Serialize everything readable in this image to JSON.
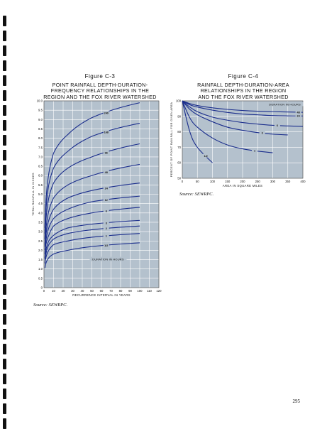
{
  "left": {
    "figure_number": "Figure C-3",
    "title_lines": [
      "POINT RAINFALL DEPTH-DURATION-",
      "FREQUENCY RELATIONSHIPS IN THE",
      "REGION AND THE FOX RIVER WATERSHED"
    ],
    "source": "Source: SEWRPC.",
    "colors": {
      "background": "#b4c1cd",
      "grid": "#ffffff",
      "curve": "#1a2d8c",
      "text": "#111111"
    }
  },
  "right": {
    "figure_number": "Figure C-4",
    "title_lines": [
      "RAINFALL DEPTH-DURATION-AREA",
      "RELATIONSHIPS IN THE REGION",
      "AND THE FOX RIVER WATERSHED"
    ],
    "source": "Source: SEWRPC.",
    "colors": {
      "background": "#b4c1cd",
      "grid": "#ffffff",
      "curve": "#1a2d8c",
      "text": "#111111"
    }
  },
  "page_number": "295",
  "chart_data": [
    {
      "type": "line",
      "xlabel": "RECURRENCE INTERVAL IN YEARS",
      "ylabel": "TOTAL RAINFALL IN INCHES",
      "xlim": [
        0,
        120
      ],
      "ylim": [
        0,
        10
      ],
      "xticks": [
        0,
        10,
        20,
        30,
        40,
        50,
        60,
        70,
        80,
        90,
        100,
        110,
        120
      ],
      "yticks": [
        0,
        0.5,
        1.0,
        1.5,
        2.0,
        2.5,
        3.0,
        3.5,
        4.0,
        4.5,
        5.0,
        5.5,
        6.0,
        6.5,
        7.0,
        7.5,
        8.0,
        8.5,
        9.0,
        9.5,
        10.0
      ],
      "ytick_labels": [
        "0",
        "0.5",
        "1.0",
        "1.5",
        "2.0",
        "2.5",
        "3.0",
        "3.5",
        "4.0",
        "4.5",
        "5.0",
        "5.5",
        "6.0",
        "6.5",
        "7.0",
        "7.5",
        "8.0",
        "8.5",
        "9.0",
        "9.5",
        "10.0"
      ],
      "grid": true,
      "annotation": "DURATION IN HOURS",
      "x": [
        1,
        2,
        5,
        10,
        25,
        50,
        100
      ],
      "series": [
        {
          "name": "240",
          "label_x": 65,
          "values": [
            3.2,
            4.6,
            6.1,
            7.2,
            8.2,
            9.1,
            9.9
          ]
        },
        {
          "name": "168",
          "label_x": 65,
          "values": [
            2.9,
            4.1,
            5.5,
            6.4,
            7.3,
            8.1,
            8.8
          ]
        },
        {
          "name": "96",
          "label_x": 65,
          "values": [
            2.6,
            3.6,
            4.8,
            5.6,
            6.4,
            7.0,
            7.7
          ]
        },
        {
          "name": "48",
          "label_x": 65,
          "values": [
            2.3,
            3.1,
            4.1,
            4.8,
            5.5,
            6.0,
            6.6
          ]
        },
        {
          "name": "24",
          "label_x": 65,
          "values": [
            2.2,
            2.8,
            3.6,
            4.2,
            4.8,
            5.2,
            5.6
          ]
        },
        {
          "name": "12",
          "label_x": 65,
          "values": [
            2.0,
            2.5,
            3.2,
            3.7,
            4.2,
            4.6,
            4.9
          ]
        },
        {
          "name": "6",
          "label_x": 65,
          "values": [
            1.8,
            2.3,
            2.8,
            3.3,
            3.7,
            4.0,
            4.3
          ]
        },
        {
          "name": "3",
          "label_x": 65,
          "values": [
            1.6,
            2.0,
            2.5,
            2.8,
            3.2,
            3.4,
            3.6
          ]
        },
        {
          "name": "2",
          "label_x": 65,
          "values": [
            1.5,
            1.8,
            2.3,
            2.6,
            2.9,
            3.1,
            3.3
          ]
        },
        {
          "name": "1",
          "label_x": 65,
          "values": [
            1.3,
            1.6,
            2.0,
            2.3,
            2.5,
            2.7,
            2.9
          ]
        },
        {
          "name": "1/2",
          "label_x": 65,
          "values": [
            1.05,
            1.3,
            1.6,
            1.8,
            2.0,
            2.2,
            2.4
          ]
        }
      ]
    },
    {
      "type": "line",
      "xlabel": "AREA IN SQUARE MILES",
      "ylabel": "PERCENT OF POINT RAINFALL FOR GIVEN AREA",
      "xlim": [
        0,
        400
      ],
      "ylim": [
        50,
        100
      ],
      "xticks": [
        0,
        50,
        100,
        150,
        200,
        250,
        300,
        350,
        400
      ],
      "yticks": [
        50,
        60,
        70,
        80,
        90,
        100
      ],
      "grid": true,
      "annotation": "DURATION IN HOURS",
      "x": [
        0,
        25,
        50,
        100,
        150,
        200,
        250,
        300,
        350,
        400
      ],
      "series": [
        {
          "name": "48",
          "label_x": 385,
          "values": [
            100,
            98.2,
            97,
            95.5,
            94.5,
            93.8,
            93.3,
            93,
            92.8,
            92.6
          ]
        },
        {
          "name": "24",
          "label_x": 385,
          "values": [
            100,
            97.5,
            96,
            94,
            92.5,
            91.5,
            91,
            90.5,
            90.3,
            90.2
          ]
        },
        {
          "name": "6",
          "label_x": 315,
          "values": [
            100,
            96,
            93,
            89.5,
            87.5,
            86,
            85,
            84.2,
            83.8,
            83.5
          ]
        },
        {
          "name": "3",
          "label_x": 265,
          "values": [
            100,
            94.5,
            91,
            86.5,
            83,
            81,
            79.5,
            78.5,
            78,
            null
          ]
        },
        {
          "name": "1",
          "label_x": 240,
          "values": [
            100,
            89,
            83,
            76,
            71.5,
            69,
            67.5,
            66.5,
            null,
            null
          ]
        },
        {
          "name": "1/2",
          "label_x": 78,
          "values": [
            100,
            80,
            70,
            60,
            null,
            null,
            null,
            null,
            null,
            null
          ]
        }
      ]
    }
  ]
}
